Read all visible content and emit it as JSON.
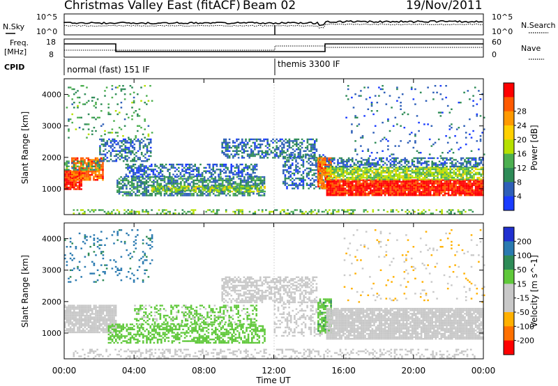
{
  "header": {
    "title": "Christmas Valley East (fitACF)",
    "beam": "Beam 02",
    "date": "19/Nov/2011"
  },
  "top_panels": {
    "nsky_label": "N.Sky",
    "nsearch_label": "N.Search",
    "freq_label_1": "Freq.",
    "freq_label_2": "[MHz]",
    "nave_label": "Nave",
    "cpid_label": "CPID",
    "noise_ticks": [
      "10^5",
      "10^0"
    ],
    "noise_ticks_right": [
      "10^5",
      "10^0"
    ],
    "freq_ticks": [
      "18",
      "8"
    ],
    "nave_ticks": [
      "60",
      "0"
    ],
    "cpid_segments": [
      {
        "label": "normal (fast) 151 IF",
        "start_hour": 0,
        "end_hour": 12
      },
      {
        "label": "themis 3300 IF",
        "start_hour": 12,
        "end_hour": 24
      }
    ]
  },
  "colors": {
    "power_scale": [
      "#1a3cff",
      "#2e5fb8",
      "#2e8b57",
      "#4caf50",
      "#b6e000",
      "#ffd000",
      "#ff9900",
      "#ff5a00",
      "#ff0000"
    ],
    "velocity_scale": [
      "#2030d0",
      "#2a7ab0",
      "#2e8b57",
      "#5fc83a",
      "#c8c8c8",
      "#c8c8c8",
      "#ffb000",
      "#ff7000",
      "#ff0000"
    ],
    "ground_scatter": "#c8c8c8"
  },
  "chart_data": [
    {
      "type": "heatmap",
      "name": "power",
      "ylabel": "Slant Range [km]",
      "xlabel": "",
      "xlim": [
        0,
        24
      ],
      "ylim": [
        180,
        4500
      ],
      "xticks": [
        0,
        4,
        8,
        12,
        16,
        20,
        24
      ],
      "yticks": [
        1000,
        2000,
        3000,
        4000
      ],
      "colorbar_label": "Power [dB]",
      "colorbar_ticks": [
        "4",
        "8",
        "12",
        "16",
        "20",
        "24",
        "28"
      ],
      "colorbar_range": [
        0,
        30
      ],
      "features": [
        {
          "start_hour": 0.0,
          "end_hour": 1.0,
          "range_start_km": 1000,
          "range_end_km": 1600,
          "power_db": 28,
          "density": 0.95
        },
        {
          "start_hour": 0.4,
          "end_hour": 2.2,
          "range_start_km": 1300,
          "range_end_km": 2000,
          "power_db": 24,
          "density": 0.85
        },
        {
          "start_hour": 0.0,
          "end_hour": 2.0,
          "range_start_km": 1600,
          "range_end_km": 1900,
          "power_db": 10,
          "density": 0.6
        },
        {
          "start_hour": 2.0,
          "end_hour": 5.0,
          "range_start_km": 1900,
          "range_end_km": 2600,
          "power_db": 6,
          "density": 0.5
        },
        {
          "start_hour": 3.0,
          "end_hour": 11.5,
          "range_start_km": 800,
          "range_end_km": 1400,
          "power_db": 8,
          "density": 0.7
        },
        {
          "start_hour": 3.5,
          "end_hour": 11.0,
          "range_start_km": 1400,
          "range_end_km": 1800,
          "power_db": 5,
          "density": 0.55
        },
        {
          "start_hour": 5.0,
          "end_hour": 11.5,
          "range_start_km": 900,
          "range_end_km": 1100,
          "power_db": 14,
          "density": 0.6
        },
        {
          "start_hour": 9.0,
          "end_hour": 14.5,
          "range_start_km": 2000,
          "range_end_km": 2600,
          "power_db": 6,
          "density": 0.55
        },
        {
          "start_hour": 12.5,
          "end_hour": 15.0,
          "range_start_km": 1000,
          "range_end_km": 2100,
          "power_db": 6,
          "density": 0.45
        },
        {
          "start_hour": 14.5,
          "end_hour": 15.3,
          "range_start_km": 1000,
          "range_end_km": 2000,
          "power_db": 24,
          "density": 0.8
        },
        {
          "start_hour": 15.0,
          "end_hour": 24.0,
          "range_start_km": 800,
          "range_end_km": 1300,
          "power_db": 28,
          "density": 0.95
        },
        {
          "start_hour": 15.0,
          "end_hour": 24.0,
          "range_start_km": 1300,
          "range_end_km": 1700,
          "power_db": 14,
          "density": 0.8
        },
        {
          "start_hour": 15.0,
          "end_hour": 24.0,
          "range_start_km": 1700,
          "range_end_km": 2000,
          "power_db": 6,
          "density": 0.55
        },
        {
          "start_hour": 0.5,
          "end_hour": 23.5,
          "range_start_km": 200,
          "range_end_km": 350,
          "power_db": 12,
          "density": 0.35
        },
        {
          "start_hour": 16.0,
          "end_hour": 24.0,
          "range_start_km": 2000,
          "range_end_km": 4300,
          "power_db": 5,
          "density": 0.05
        },
        {
          "start_hour": 0.0,
          "end_hour": 5.0,
          "range_start_km": 2600,
          "range_end_km": 4300,
          "power_db": 10,
          "density": 0.1
        }
      ]
    },
    {
      "type": "heatmap",
      "name": "velocity",
      "ylabel": "Slant Range [km]",
      "xlabel": "Time UT",
      "xlim": [
        0,
        24
      ],
      "ylim": [
        180,
        4500
      ],
      "xticks": [
        0,
        4,
        8,
        12,
        16,
        20,
        24
      ],
      "xticklabels": [
        "00:00",
        "04:00",
        "08:00",
        "12:00",
        "16:00",
        "20:00",
        "00:00"
      ],
      "yticks": [
        1000,
        2000,
        3000,
        4000
      ],
      "colorbar_label": "Velocity [m s^-1]",
      "colorbar_ticks": [
        "200",
        "100",
        "50",
        "15",
        "-15",
        "-50",
        "-100",
        "-200"
      ],
      "colorbar_range": [
        -250,
        250
      ],
      "features": [
        {
          "start_hour": 0.0,
          "end_hour": 3.0,
          "range_start_km": 1000,
          "range_end_km": 1900,
          "velocity_ms": 0,
          "density": 0.85
        },
        {
          "start_hour": 2.5,
          "end_hour": 11.5,
          "range_start_km": 700,
          "range_end_km": 1300,
          "velocity_ms": 60,
          "density": 0.55
        },
        {
          "start_hour": 4.0,
          "end_hour": 11.0,
          "range_start_km": 1300,
          "range_end_km": 1900,
          "velocity_ms": 40,
          "density": 0.4
        },
        {
          "start_hour": 9.0,
          "end_hour": 14.5,
          "range_start_km": 2000,
          "range_end_km": 2800,
          "velocity_ms": 0,
          "density": 0.55
        },
        {
          "start_hour": 12.0,
          "end_hour": 15.0,
          "range_start_km": 900,
          "range_end_km": 2000,
          "velocity_ms": -40,
          "density": 0.35
        },
        {
          "start_hour": 14.5,
          "end_hour": 15.3,
          "range_start_km": 1000,
          "range_end_km": 2100,
          "velocity_ms": 70,
          "density": 0.75
        },
        {
          "start_hour": 15.0,
          "end_hour": 24.0,
          "range_start_km": 800,
          "range_end_km": 1800,
          "velocity_ms": 0,
          "density": 0.9
        },
        {
          "start_hour": 0.5,
          "end_hour": 23.5,
          "range_start_km": 200,
          "range_end_km": 500,
          "velocity_ms": -60,
          "density": 0.3
        },
        {
          "start_hour": 0.0,
          "end_hour": 5.0,
          "range_start_km": 2600,
          "range_end_km": 4300,
          "velocity_ms": 150,
          "density": 0.1
        },
        {
          "start_hour": 16.0,
          "end_hour": 24.0,
          "range_start_km": 2000,
          "range_end_km": 4300,
          "velocity_ms": -80,
          "density": 0.05
        }
      ]
    }
  ]
}
